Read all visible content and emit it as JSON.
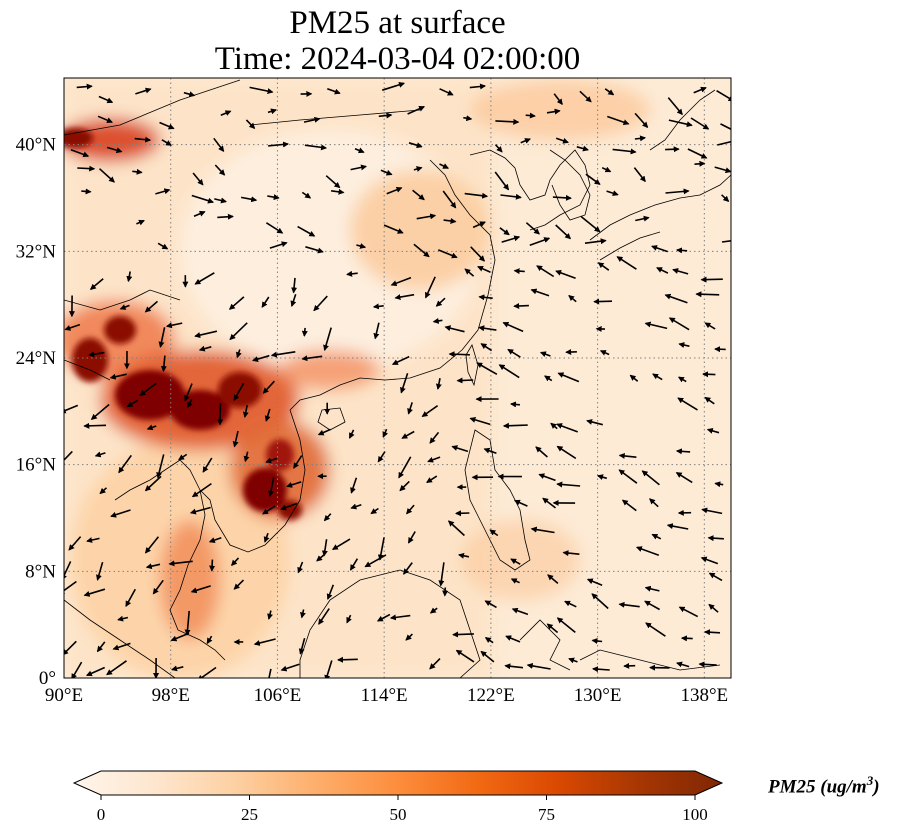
{
  "title": {
    "line1": "PM25 at surface",
    "line2": "Time: 2024-03-04 02:00:00"
  },
  "map": {
    "extent": {
      "lon": [
        90,
        140
      ],
      "lat": [
        0,
        45
      ]
    },
    "lon_ticks": [
      {
        "value": 90,
        "label": "90°E"
      },
      {
        "value": 98,
        "label": "98°E"
      },
      {
        "value": 106,
        "label": "106°E"
      },
      {
        "value": 114,
        "label": "114°E"
      },
      {
        "value": 122,
        "label": "122°E"
      },
      {
        "value": 130,
        "label": "130°E"
      },
      {
        "value": 138,
        "label": "138°E"
      }
    ],
    "lat_ticks": [
      {
        "value": 0,
        "label": "0°"
      },
      {
        "value": 8,
        "label": "8°N"
      },
      {
        "value": 16,
        "label": "16°N"
      },
      {
        "value": 24,
        "label": "24°N"
      },
      {
        "value": 32,
        "label": "32°N"
      },
      {
        "value": 40,
        "label": "40°N"
      }
    ],
    "gridlines": "dotted",
    "field": "PM25",
    "vectors": "wind arrows",
    "coastlines": true
  },
  "colorbar": {
    "label": "PM25 (ug/m",
    "label_sup": "3",
    "label_close": ")",
    "min": 0,
    "max": 100,
    "extend": "both",
    "ticks": [
      {
        "value": 0,
        "label": "0"
      },
      {
        "value": 25,
        "label": "25"
      },
      {
        "value": 50,
        "label": "50"
      },
      {
        "value": 75,
        "label": "75"
      },
      {
        "value": 100,
        "label": "100"
      }
    ],
    "colors": [
      "#fff5eb",
      "#fee6ce",
      "#fdd0a2",
      "#fdae6b",
      "#fd8d3c",
      "#f16913",
      "#d94801",
      "#a63603",
      "#7f2704"
    ]
  },
  "colors": {
    "land_heavy": "#7f0000",
    "land_high": "#c0301a",
    "land_mid": "#f4a46b",
    "ocean_base": "#fdebd6",
    "grid": "#808080"
  }
}
